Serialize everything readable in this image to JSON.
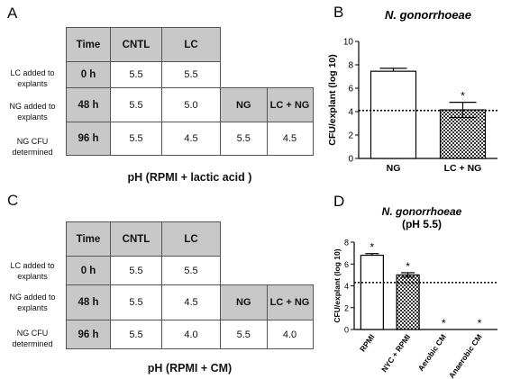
{
  "panel_a": {
    "letter": "A",
    "headers": [
      "Time",
      "CNTL",
      "LC"
    ],
    "row_labels": [
      "LC added to explants",
      "NG added to explants",
      "NG CFU determined"
    ],
    "times": [
      "0 h",
      "48 h",
      "96 h"
    ],
    "cntl": [
      "5.5",
      "5.5",
      "5.5"
    ],
    "lc": [
      "5.5",
      "5.0",
      "4.5"
    ],
    "ng_header": "NG",
    "lcng_header": "LC + NG",
    "ng_value": "5.5",
    "lcng_value": "4.5",
    "caption": "pH (RPMI + lactic acid )"
  },
  "panel_c": {
    "letter": "C",
    "headers": [
      "Time",
      "CNTL",
      "LC"
    ],
    "row_labels": [
      "LC added to explants",
      "NG added to explants",
      "NG CFU determined"
    ],
    "times": [
      "0 h",
      "48 h",
      "96 h"
    ],
    "cntl": [
      "5.5",
      "5.5",
      "5.5"
    ],
    "lc": [
      "5.5",
      "4.5",
      "4.0"
    ],
    "ng_header": "NG",
    "lcng_header": "LC + NG",
    "ng_value": "5.5",
    "lcng_value": "4.0",
    "caption": "pH (RPMI + CM)"
  },
  "chart_data": [
    {
      "panel": "B",
      "type": "bar",
      "title": "N. gonorrhoeae",
      "ylabel": "CFU/explant (log 10)",
      "categories": [
        "NG",
        "LC + NG"
      ],
      "values": [
        7.45,
        4.15
      ],
      "errors": [
        0.25,
        0.65
      ],
      "patterns": [
        "white",
        "checker"
      ],
      "significance": [
        "",
        "*"
      ],
      "ylim": [
        0,
        10
      ],
      "yticks": [
        0,
        2,
        4,
        6,
        8,
        10
      ],
      "threshold": 4.1
    },
    {
      "panel": "D",
      "type": "bar",
      "title": "N. gonorrhoeae",
      "subtitle": "(pH 5.5)",
      "ylabel": "CFU/explant (log 10)",
      "categories": [
        "RPMI",
        "NYC + RPMI",
        "Aerobic CM",
        "Anaerobic CM"
      ],
      "values": [
        6.8,
        5.0,
        0,
        0
      ],
      "errors": [
        0.15,
        0.2,
        0,
        0
      ],
      "patterns": [
        "white",
        "checker",
        "white",
        "white"
      ],
      "significance": [
        "*",
        "*",
        "*",
        "*"
      ],
      "ylim": [
        0,
        8
      ],
      "yticks": [
        0,
        2,
        4,
        6,
        8
      ],
      "threshold": 4.3
    }
  ]
}
